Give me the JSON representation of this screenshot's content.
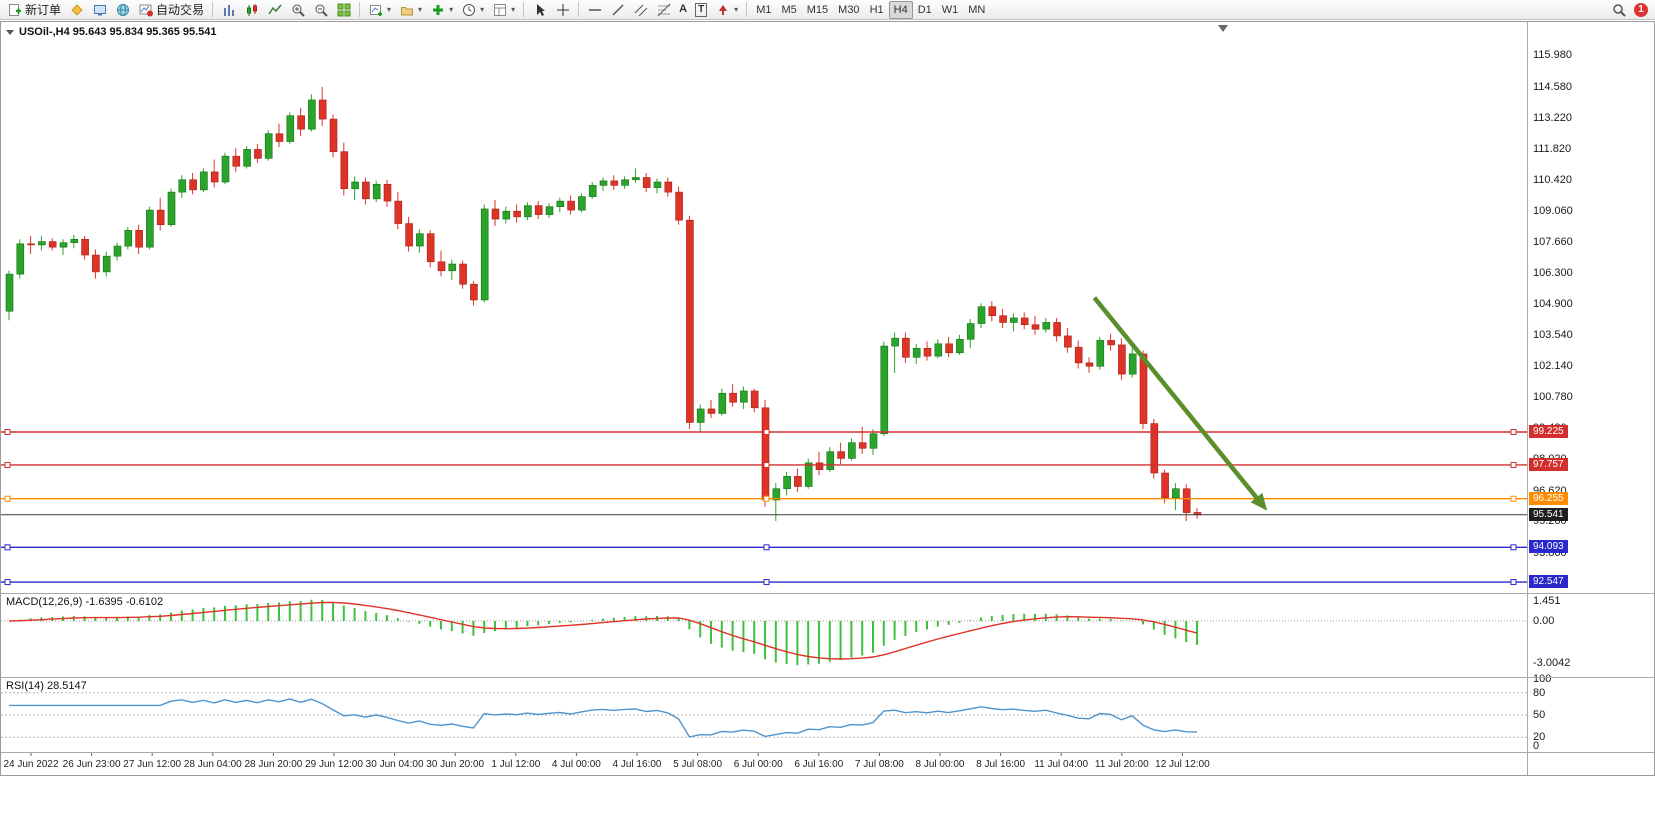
{
  "toolbar": {
    "new_order": "新订单",
    "autotrading": "自动交易",
    "text_tool": "A",
    "label_tool": "T",
    "timeframes": [
      "M1",
      "M5",
      "M15",
      "M30",
      "H1",
      "H4",
      "D1",
      "W1",
      "MN"
    ],
    "active_timeframe": "H4",
    "notification_count": "1"
  },
  "indicator_labels": {
    "macd_title": "MACD(12,26,9)",
    "macd_values": "-1.6395 -0.6102",
    "rsi_title": "RSI(14)",
    "rsi_value": "28.5147"
  },
  "chart_data": {
    "type": "candlestick",
    "symbol": "USOil-",
    "period": "H4",
    "title": "USOil-,H4 95.643 95.834 95.365 95.541",
    "current_ohlc": {
      "open": 95.643,
      "high": 95.834,
      "low": 95.365,
      "close": 95.541
    },
    "y_range": [
      92.06,
      117.47
    ],
    "price_axis_labels": [
      "115.980",
      "114.580",
      "113.220",
      "111.820",
      "110.420",
      "109.060",
      "107.660",
      "106.300",
      "104.900",
      "103.540",
      "102.140",
      "100.780",
      "99.420",
      "98.020",
      "96.620",
      "95.260",
      "93.860",
      "92.460"
    ],
    "time_axis_labels": [
      "24 Jun 2022",
      "26 Jun 23:00",
      "27 Jun 12:00",
      "28 Jun 04:00",
      "28 Jun 20:00",
      "29 Jun 12:00",
      "30 Jun 04:00",
      "30 Jun 20:00",
      "1 Jul 12:00",
      "4 Jul 00:00",
      "4 Jul 16:00",
      "5 Jul 08:00",
      "6 Jul 00:00",
      "6 Jul 16:00",
      "7 Jul 08:00",
      "8 Jul 00:00",
      "8 Jul 16:00",
      "11 Jul 04:00",
      "11 Jul 20:00",
      "12 Jul 12:00"
    ],
    "hlines": [
      {
        "price": 99.225,
        "label": "99.225",
        "color": "#d32f2f"
      },
      {
        "price": 97.757,
        "label": "97.757",
        "color": "#d32f2f"
      },
      {
        "price": 96.255,
        "label": "96.255",
        "color": "#ff8c00"
      },
      {
        "price": 94.093,
        "label": "94.093",
        "color": "#2929cc"
      },
      {
        "price": 92.547,
        "label": "92.547",
        "color": "#2929cc"
      }
    ],
    "bid_line": {
      "price": 95.541,
      "label": "95.541",
      "color": "#3a3a3a",
      "badge_bg": "#1f1f1f"
    },
    "trend_arrow": {
      "from": {
        "bar": 100.5,
        "price": 105.2
      },
      "to": {
        "bar": 116.5,
        "price": 95.72
      },
      "color": "#5a8f2b"
    },
    "indicators": [
      {
        "type": "macd",
        "label": "MACD(12,26,9)",
        "values_text": "-1.6395 -0.6102",
        "params": [
          12,
          26,
          9
        ],
        "y_range": [
          -4.05,
          1.95
        ],
        "axis_labels": [
          {
            "value": 1.451,
            "text": "1.451"
          },
          {
            "value": 0,
            "text": "0.00"
          },
          {
            "value": -3.0042,
            "text": "-3.0042"
          }
        ]
      },
      {
        "type": "rsi",
        "label": "RSI(14)",
        "value_text": "28.5147",
        "period": 14,
        "y_range": [
          0,
          100
        ],
        "levels": [
          80,
          50,
          20
        ],
        "axis_labels": [
          {
            "value": 100,
            "text": "100"
          },
          {
            "value": 80,
            "text": "80"
          },
          {
            "value": 50,
            "text": "50"
          },
          {
            "value": 20,
            "text": "20"
          },
          {
            "value": 0,
            "text": "0"
          }
        ]
      }
    ],
    "colors": {
      "bull": "#2aa42a",
      "bull_border": "#157015",
      "bear": "#e03328",
      "bear_border": "#a02218",
      "macd_hist": "#3cc23c",
      "macd_signal": "#e03328",
      "rsi_line": "#4f94cd",
      "grid": "#a8a8a8",
      "background": "#ffffff"
    },
    "candles": [
      [
        104.6,
        106.4,
        104.2,
        106.25
      ],
      [
        106.25,
        107.8,
        106.05,
        107.6
      ],
      [
        107.6,
        107.95,
        107.15,
        107.55
      ],
      [
        107.55,
        107.95,
        107.3,
        107.7
      ],
      [
        107.7,
        107.85,
        107.3,
        107.45
      ],
      [
        107.45,
        107.8,
        107.1,
        107.65
      ],
      [
        107.65,
        108.0,
        107.4,
        107.8
      ],
      [
        107.8,
        107.95,
        106.9,
        107.1
      ],
      [
        107.1,
        107.35,
        106.05,
        106.35
      ],
      [
        106.35,
        107.25,
        106.15,
        107.05
      ],
      [
        107.05,
        107.65,
        106.85,
        107.5
      ],
      [
        107.5,
        108.35,
        107.35,
        108.2
      ],
      [
        108.2,
        108.45,
        107.15,
        107.45
      ],
      [
        107.45,
        109.25,
        107.35,
        109.1
      ],
      [
        109.1,
        109.65,
        108.2,
        108.45
      ],
      [
        108.45,
        110.05,
        108.35,
        109.9
      ],
      [
        109.9,
        110.65,
        109.65,
        110.45
      ],
      [
        110.45,
        110.75,
        109.8,
        110.0
      ],
      [
        110.0,
        110.95,
        109.9,
        110.8
      ],
      [
        110.8,
        111.35,
        110.1,
        110.35
      ],
      [
        110.35,
        111.65,
        110.25,
        111.5
      ],
      [
        111.5,
        111.85,
        110.8,
        111.05
      ],
      [
        111.05,
        111.95,
        110.95,
        111.8
      ],
      [
        111.8,
        112.05,
        111.2,
        111.4
      ],
      [
        111.4,
        112.65,
        111.3,
        112.5
      ],
      [
        112.5,
        112.95,
        111.9,
        112.15
      ],
      [
        112.15,
        113.45,
        112.05,
        113.3
      ],
      [
        113.3,
        113.65,
        112.4,
        112.7
      ],
      [
        112.7,
        114.25,
        112.6,
        114.0
      ],
      [
        114.0,
        114.58,
        112.85,
        113.15
      ],
      [
        113.15,
        113.35,
        111.45,
        111.7
      ],
      [
        111.7,
        112.1,
        109.75,
        110.05
      ],
      [
        110.05,
        110.6,
        109.55,
        110.35
      ],
      [
        110.35,
        110.55,
        109.35,
        109.6
      ],
      [
        109.6,
        110.4,
        109.45,
        110.25
      ],
      [
        110.25,
        110.45,
        109.25,
        109.5
      ],
      [
        109.5,
        109.9,
        108.25,
        108.5
      ],
      [
        108.5,
        108.8,
        107.25,
        107.5
      ],
      [
        107.5,
        108.25,
        107.2,
        108.05
      ],
      [
        108.05,
        108.2,
        106.55,
        106.8
      ],
      [
        106.8,
        107.3,
        106.15,
        106.4
      ],
      [
        106.4,
        106.9,
        106.0,
        106.7
      ],
      [
        106.7,
        106.85,
        105.6,
        105.8
      ],
      [
        105.8,
        105.95,
        104.85,
        105.1
      ],
      [
        105.1,
        109.35,
        105.0,
        109.15
      ],
      [
        109.15,
        109.55,
        108.4,
        108.7
      ],
      [
        108.7,
        109.25,
        108.5,
        109.05
      ],
      [
        109.05,
        109.35,
        108.55,
        108.8
      ],
      [
        108.8,
        109.45,
        108.65,
        109.3
      ],
      [
        109.3,
        109.5,
        108.7,
        108.9
      ],
      [
        108.9,
        109.4,
        108.75,
        109.25
      ],
      [
        109.25,
        109.65,
        109.0,
        109.5
      ],
      [
        109.5,
        109.75,
        108.9,
        109.1
      ],
      [
        109.1,
        109.85,
        109.0,
        109.7
      ],
      [
        109.7,
        110.35,
        109.6,
        110.2
      ],
      [
        110.2,
        110.55,
        109.95,
        110.4
      ],
      [
        110.4,
        110.65,
        110.0,
        110.2
      ],
      [
        110.2,
        110.6,
        110.05,
        110.45
      ],
      [
        110.45,
        110.95,
        110.3,
        110.55
      ],
      [
        110.55,
        110.75,
        109.9,
        110.1
      ],
      [
        110.1,
        110.5,
        109.85,
        110.35
      ],
      [
        110.35,
        110.55,
        109.7,
        109.9
      ],
      [
        109.9,
        110.15,
        108.45,
        108.65
      ],
      [
        108.65,
        108.85,
        99.35,
        99.65
      ],
      [
        99.65,
        100.45,
        99.25,
        100.25
      ],
      [
        100.25,
        100.65,
        99.85,
        100.05
      ],
      [
        100.05,
        101.15,
        99.95,
        100.95
      ],
      [
        100.95,
        101.35,
        100.35,
        100.55
      ],
      [
        100.55,
        101.25,
        100.25,
        101.05
      ],
      [
        101.05,
        101.15,
        100.1,
        100.3
      ],
      [
        100.3,
        100.65,
        95.9,
        96.2
      ],
      [
        96.2,
        96.95,
        95.26,
        96.7
      ],
      [
        96.7,
        97.45,
        96.4,
        97.25
      ],
      [
        97.25,
        97.6,
        96.55,
        96.8
      ],
      [
        96.8,
        98.05,
        96.7,
        97.85
      ],
      [
        97.85,
        98.35,
        97.3,
        97.55
      ],
      [
        97.55,
        98.55,
        97.45,
        98.35
      ],
      [
        98.35,
        98.75,
        97.8,
        98.05
      ],
      [
        98.05,
        98.95,
        97.95,
        98.75
      ],
      [
        98.75,
        99.45,
        98.25,
        98.5
      ],
      [
        98.5,
        99.35,
        98.2,
        99.15
      ],
      [
        99.15,
        103.25,
        99.05,
        103.05
      ],
      [
        103.05,
        103.65,
        101.85,
        103.4
      ],
      [
        103.4,
        103.65,
        102.3,
        102.55
      ],
      [
        102.55,
        103.15,
        102.25,
        102.95
      ],
      [
        102.95,
        103.25,
        102.4,
        102.6
      ],
      [
        102.6,
        103.35,
        102.5,
        103.15
      ],
      [
        103.15,
        103.45,
        102.55,
        102.75
      ],
      [
        102.75,
        103.55,
        102.65,
        103.35
      ],
      [
        103.35,
        104.25,
        102.95,
        104.05
      ],
      [
        104.05,
        104.95,
        103.85,
        104.8
      ],
      [
        104.8,
        105.05,
        104.15,
        104.4
      ],
      [
        104.4,
        104.7,
        103.85,
        104.1
      ],
      [
        104.1,
        104.5,
        103.7,
        104.3
      ],
      [
        104.3,
        104.55,
        103.8,
        104.0
      ],
      [
        104.0,
        104.4,
        103.55,
        103.8
      ],
      [
        103.8,
        104.3,
        103.65,
        104.1
      ],
      [
        104.1,
        104.3,
        103.25,
        103.5
      ],
      [
        103.5,
        103.85,
        102.75,
        103.0
      ],
      [
        103.0,
        103.3,
        102.05,
        102.3
      ],
      [
        102.3,
        102.55,
        101.85,
        102.15
      ],
      [
        102.15,
        103.45,
        102.0,
        103.3
      ],
      [
        103.3,
        103.6,
        102.85,
        103.1
      ],
      [
        103.1,
        103.4,
        101.55,
        101.8
      ],
      [
        101.8,
        102.95,
        101.65,
        102.7
      ],
      [
        102.7,
        102.85,
        99.35,
        99.6
      ],
      [
        99.6,
        99.8,
        97.15,
        97.4
      ],
      [
        97.4,
        97.55,
        96.05,
        96.3
      ],
      [
        96.3,
        96.95,
        95.75,
        96.7
      ],
      [
        96.7,
        96.9,
        95.26,
        95.64
      ],
      [
        95.643,
        95.834,
        95.365,
        95.541
      ]
    ]
  }
}
